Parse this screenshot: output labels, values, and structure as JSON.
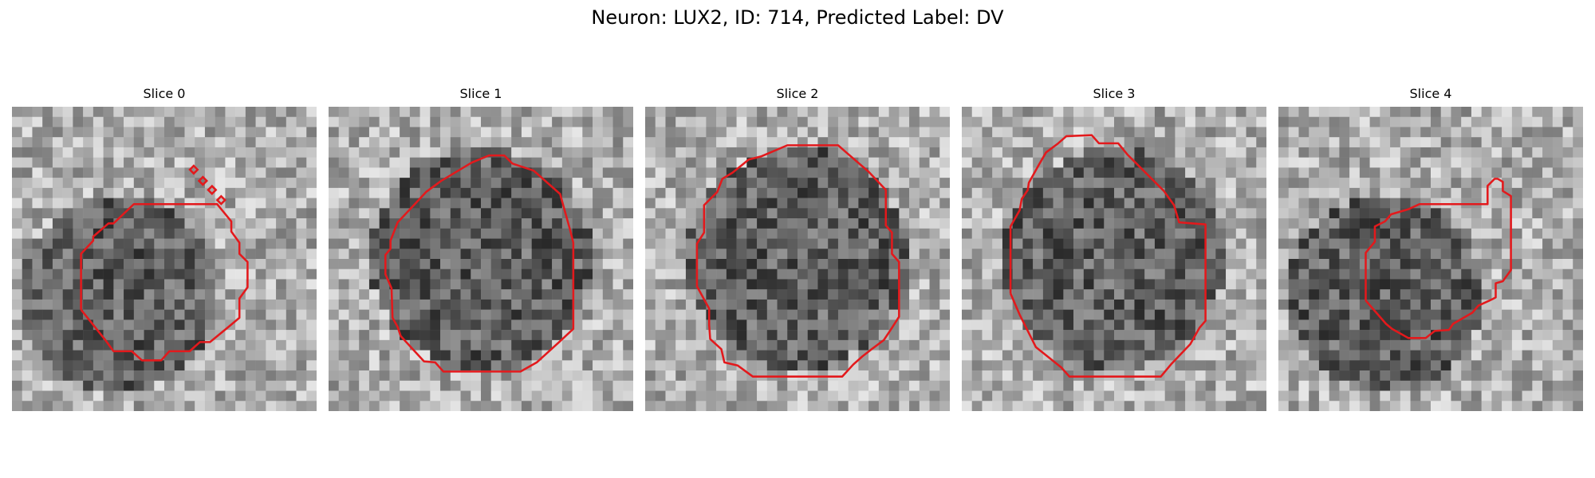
{
  "figure": {
    "title": "Neuron: LUX2, ID: 714, Predicted Label: DV"
  },
  "slices": [
    {
      "title": "Slice 0",
      "seed": 11,
      "dark_blob": "lower-left"
    },
    {
      "title": "Slice 1",
      "seed": 23,
      "dark_blob": "center"
    },
    {
      "title": "Slice 2",
      "seed": 37,
      "dark_blob": "center"
    },
    {
      "title": "Slice 3",
      "seed": 41,
      "dark_blob": "center"
    },
    {
      "title": "Slice 4",
      "seed": 59,
      "dark_blob": "lower-left"
    }
  ],
  "style": {
    "contour_color": "#e3191c",
    "colormap": "grayscale"
  }
}
